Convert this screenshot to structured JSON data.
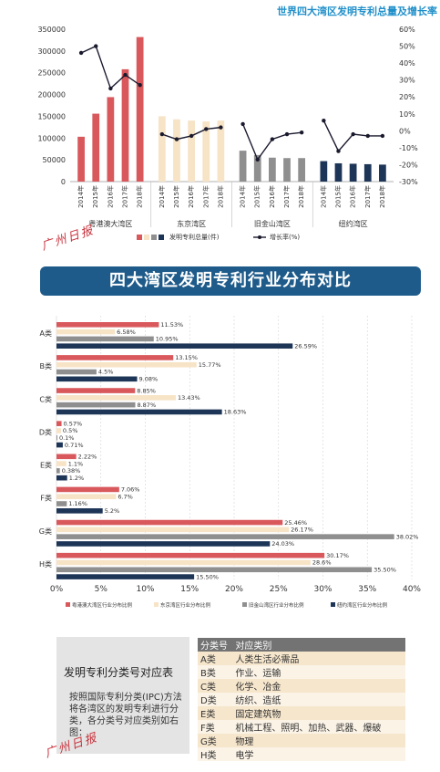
{
  "top_title": "世界四大湾区发明专利总量及增长率",
  "banner": "四大湾区发明专利行业分布对比",
  "watermark": "广州日报",
  "ipc": {
    "title": "发明专利分类号对应表",
    "desc": "按照国际专利分类(IPC)方法将各湾区的发明专利进行分类，各分类号对应类别如右图：",
    "header": [
      "分类号",
      "对应类别"
    ],
    "rows": [
      [
        "A类",
        "人类生活必需品"
      ],
      [
        "B类",
        "作业、运输"
      ],
      [
        "C类",
        "化学、冶金"
      ],
      [
        "D类",
        "纺织、造纸"
      ],
      [
        "E类",
        "固定建筑物"
      ],
      [
        "F类",
        "机械工程、照明、加热、武器、爆破"
      ],
      [
        "G类",
        "物理"
      ],
      [
        "H类",
        "电学"
      ]
    ]
  },
  "colors": {
    "red": "#d9585c",
    "cream": "#f7e3c6",
    "gray": "#8f8f8f",
    "navy": "#1d3557",
    "line": "#1a1a2e",
    "title_blue": "#1f8fc9",
    "banner": "#1e5b8a"
  },
  "chart_data": [
    {
      "type": "bar",
      "title": "世界四大湾区发明专利总量及增长率",
      "years": [
        "2014年",
        "2015年",
        "2016年",
        "2017年",
        "2018年"
      ],
      "groups": [
        "粤港澳大湾区",
        "东京湾区",
        "旧金山湾区",
        "纽约湾区"
      ],
      "series": [
        {
          "name": "发明专利总量(件)",
          "group": "粤港澳大湾区",
          "values": [
            103000,
            156000,
            194000,
            258000,
            332000
          ]
        },
        {
          "name": "发明专利总量(件)",
          "group": "东京湾区",
          "values": [
            150000,
            143000,
            140000,
            138000,
            140000
          ]
        },
        {
          "name": "发明专利总量(件)",
          "group": "旧金山湾区",
          "values": [
            71000,
            61000,
            55000,
            54000,
            54000
          ]
        },
        {
          "name": "发明专利总量(件)",
          "group": "纽约湾区",
          "values": [
            47000,
            42000,
            41000,
            40000,
            39000
          ]
        }
      ],
      "growth": [
        {
          "group": "粤港澳大湾区",
          "values": [
            46,
            50,
            25,
            33,
            27
          ]
        },
        {
          "group": "东京湾区",
          "values": [
            -2,
            -5,
            -3,
            1,
            2
          ]
        },
        {
          "group": "旧金山湾区",
          "values": [
            4,
            -17,
            -5,
            -2,
            -1
          ]
        },
        {
          "group": "纽约湾区",
          "values": [
            6,
            -12,
            -2,
            -3,
            -3
          ]
        }
      ],
      "y_left": {
        "ylim": [
          0,
          350000
        ],
        "ticks": [
          "0",
          "50000",
          "100000",
          "150000",
          "200000",
          "250000",
          "300000",
          "350000"
        ]
      },
      "y_right": {
        "ylim": [
          -30,
          60
        ],
        "ticks": [
          "-30%",
          "-20%",
          "-10%",
          "0%",
          "10%",
          "20%",
          "30%",
          "40%",
          "50%",
          "60%"
        ]
      },
      "legend": [
        "发明专利总量(件)",
        "增长率(%)"
      ],
      "legend_placement": "bottom"
    },
    {
      "type": "bar",
      "orientation": "horizontal",
      "categories": [
        "A类",
        "B类",
        "C类",
        "D类",
        "E类",
        "F类",
        "G类",
        "H类"
      ],
      "series": [
        {
          "name": "粤港澳大湾区行业分布比例",
          "values": [
            11.53,
            13.15,
            8.85,
            0.57,
            2.22,
            7.06,
            25.46,
            30.17
          ]
        },
        {
          "name": "东京湾区行业分布比例",
          "values": [
            6.58,
            15.77,
            13.43,
            0.5,
            1.1,
            6.7,
            26.17,
            28.6
          ]
        },
        {
          "name": "旧金山湾区行业分布比例",
          "values": [
            10.95,
            4.5,
            8.87,
            0.1,
            0.38,
            1.16,
            38.02,
            35.5
          ]
        },
        {
          "name": "纽约湾区行业分布比例",
          "values": [
            26.59,
            9.08,
            18.63,
            0.71,
            1.2,
            5.2,
            24.03,
            15.5
          ]
        }
      ],
      "labels": [
        [
          "11.53%",
          "6.58%",
          "10.95%",
          "26.59%"
        ],
        [
          "13.15%",
          "15.77%",
          "4.5%",
          "9.08%"
        ],
        [
          "8.85%",
          "13.43%",
          "8.87%",
          "18.63%"
        ],
        [
          "0.57%",
          "0.5%",
          "0.1%",
          "0.71%"
        ],
        [
          "2.22%",
          "1.1%",
          "0.38%",
          "1.2%"
        ],
        [
          "7.06%",
          "6.7%",
          "1.16%",
          "5.2%"
        ],
        [
          "25.46%",
          "26.17%",
          "38.02%",
          "24.03%"
        ],
        [
          "30.17%",
          "28.6%",
          "35.50%",
          "15.50%"
        ]
      ],
      "xlim": [
        0,
        40
      ],
      "x_ticks": [
        "0%",
        "5%",
        "10%",
        "15%",
        "20%",
        "25%",
        "30%",
        "35%",
        "40%"
      ],
      "legend": [
        "粤港澳大湾区行业分布比例",
        "东京湾区行业分布比例",
        "旧金山湾区行业分布比例",
        "纽约湾区行业分布比例"
      ],
      "legend_placement": "bottom",
      "grid": true
    }
  ]
}
